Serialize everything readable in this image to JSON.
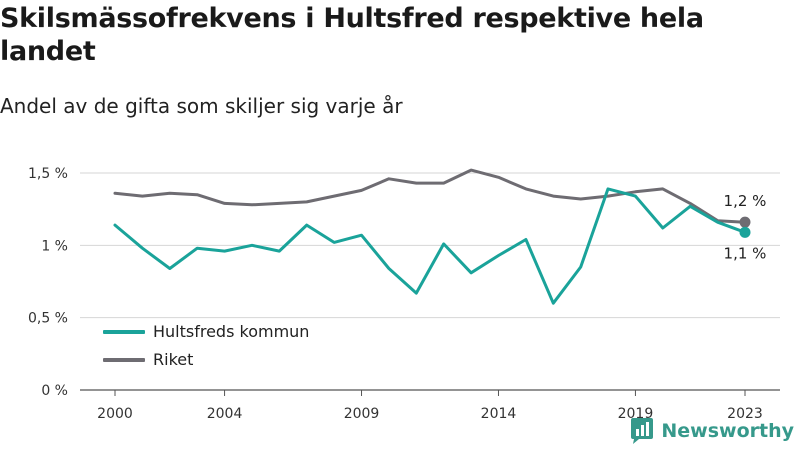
{
  "header": {
    "title": "Skilsmässofrekvens i Hultsfred respektive hela landet",
    "subtitle": "Andel av de gifta som skiljer sig varje år"
  },
  "brand": {
    "name": "Newsworthy",
    "color": "#36998b"
  },
  "chart_data": {
    "type": "line",
    "title": "Skilsmässofrekvens i Hultsfred respektive hela landet",
    "subtitle": "Andel av de gifta som skiljer sig varje år",
    "x": [
      2000,
      2001,
      2002,
      2003,
      2004,
      2005,
      2006,
      2007,
      2008,
      2009,
      2010,
      2011,
      2012,
      2013,
      2014,
      2015,
      2016,
      2017,
      2018,
      2019,
      2020,
      2021,
      2022,
      2023
    ],
    "x_ticks": [
      2000,
      2004,
      2009,
      2014,
      2019,
      2023
    ],
    "y_ticks": [
      0,
      0.5,
      1,
      1.5
    ],
    "y_tick_labels": [
      "0 %",
      "0,5 %",
      "1 %",
      "1,5 %"
    ],
    "ylim": [
      0,
      1.5
    ],
    "grid": "horizontal",
    "legend_position": "bottom-left",
    "series": [
      {
        "name": "Hultsfreds kommun",
        "color": "#1aa39a",
        "values": [
          1.14,
          0.98,
          0.84,
          0.98,
          0.96,
          1.0,
          0.96,
          1.14,
          1.02,
          1.07,
          0.84,
          0.67,
          1.01,
          0.81,
          0.93,
          1.04,
          0.6,
          0.85,
          1.39,
          1.34,
          1.12,
          1.27,
          1.16,
          1.09
        ],
        "end_label": "1,1 %"
      },
      {
        "name": "Riket",
        "color": "#6e6c72",
        "values": [
          1.36,
          1.34,
          1.36,
          1.35,
          1.29,
          1.28,
          1.29,
          1.3,
          1.34,
          1.38,
          1.46,
          1.43,
          1.43,
          1.52,
          1.47,
          1.39,
          1.34,
          1.32,
          1.34,
          1.37,
          1.39,
          1.29,
          1.17,
          1.16
        ],
        "end_label": "1,2 %"
      }
    ]
  }
}
